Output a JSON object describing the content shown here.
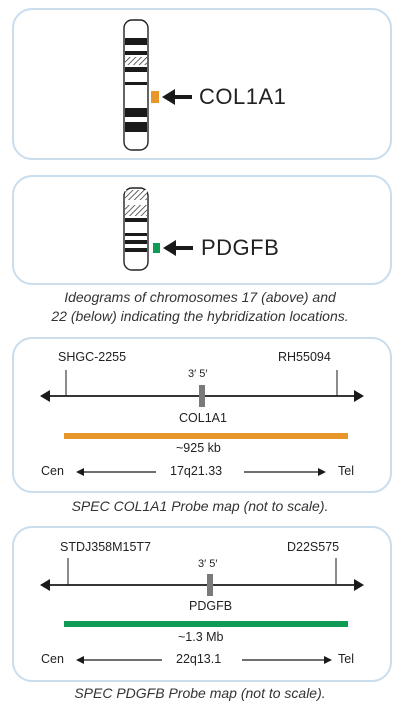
{
  "ideograms": {
    "chr17": {
      "gene_label": "COL1A1",
      "marker_color": "#e8962a"
    },
    "chr22": {
      "gene_label": "PDGFB",
      "marker_color": "#0f9a55"
    },
    "caption_line1": "Ideograms of chromosomes 17 (above) and",
    "caption_line2": "22 (below) indicating the hybridization locations."
  },
  "probe_col1a1": {
    "left_marker": "SHGC-2255",
    "right_marker": "RH55094",
    "strand_label": "3′ 5′",
    "gene": "COL1A1",
    "size": "~925 kb",
    "cen": "Cen",
    "tel": "Tel",
    "band": "17q21.33",
    "color": "#e8962a",
    "caption": "SPEC COL1A1 Probe map (not to scale)."
  },
  "probe_pdgfb": {
    "left_marker": "STDJ358M15T7",
    "right_marker": "D22S575",
    "strand_label": "3′ 5′",
    "gene": "PDGFB",
    "size": "~1.3 Mb",
    "cen": "Cen",
    "tel": "Tel",
    "band": "22q13.1",
    "color": "#0f9a55",
    "caption": "SPEC PDGFB Probe map (not to scale)."
  }
}
